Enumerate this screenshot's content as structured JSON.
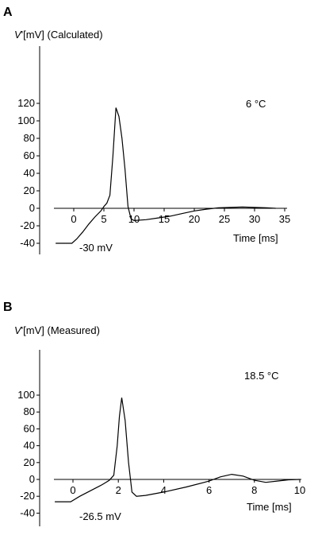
{
  "chart_data": [
    {
      "type": "line",
      "panel": "A",
      "ylabel_symbol": "V",
      "ylabel_rest": "'[mV] (Calculated)",
      "xlabel": "Time  [ms]",
      "temperature": "6 °C",
      "holding_label": "-30 mV",
      "xlim": [
        -3,
        35
      ],
      "ylim": [
        -40,
        120
      ],
      "xticks": [
        0,
        5,
        10,
        15,
        20,
        25,
        30,
        35
      ],
      "yticks": [
        -40,
        -20,
        0,
        20,
        40,
        60,
        80,
        100,
        120
      ],
      "series": [
        {
          "x": [
            -3,
            -0.3,
            0.5,
            1.5,
            2.5,
            3.5,
            4.5,
            5.0,
            5.5,
            6.0,
            6.5,
            7.0,
            7.5,
            8.0,
            8.5,
            9.0,
            9.5,
            10,
            12,
            14,
            16,
            18,
            20,
            22,
            24,
            26,
            28,
            30,
            32,
            33.5
          ],
          "y": [
            -40,
            -40,
            -35,
            -27,
            -18,
            -10,
            -3,
            2,
            6,
            15,
            60,
            115,
            105,
            80,
            45,
            2,
            -12,
            -14,
            -13,
            -11,
            -9,
            -6,
            -3,
            -1,
            0.5,
            1,
            1.5,
            1,
            0.5,
            0
          ]
        }
      ]
    },
    {
      "type": "line",
      "panel": "B",
      "ylabel_symbol": "V",
      "ylabel_rest": "'[mV] (Measured)",
      "xlabel": "Time  [ms]",
      "temperature": "18.5 °C",
      "holding_label": "-26.5 mV",
      "xlim": [
        -0.8,
        10
      ],
      "ylim": [
        -40,
        100
      ],
      "xticks": [
        0,
        2,
        4,
        6,
        8,
        10
      ],
      "yticks": [
        -40,
        -20,
        0,
        20,
        40,
        60,
        80,
        100
      ],
      "series": [
        {
          "x": [
            -0.8,
            -0.1,
            0.3,
            0.8,
            1.3,
            1.6,
            1.8,
            1.95,
            2.05,
            2.15,
            2.3,
            2.45,
            2.6,
            2.8,
            3.2,
            4,
            5,
            6,
            6.5,
            7,
            7.5,
            8,
            8.5,
            9,
            9.5,
            10
          ],
          "y": [
            -26.5,
            -26.5,
            -20,
            -13,
            -6,
            -1,
            5,
            40,
            75,
            97,
            70,
            20,
            -15,
            -20,
            -19,
            -15,
            -9,
            -2,
            3,
            6,
            4,
            -1,
            -3.5,
            -2,
            -0.5,
            0
          ]
        }
      ]
    }
  ]
}
